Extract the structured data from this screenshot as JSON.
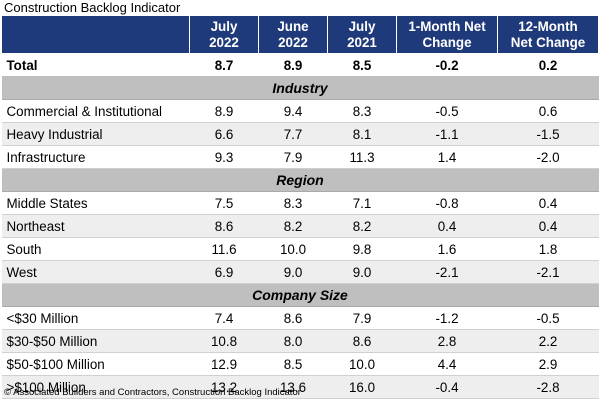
{
  "chart_data": {
    "type": "table",
    "title": "Construction Backlog Indicator",
    "columns": [
      {
        "line1": "",
        "line2": ""
      },
      {
        "line1": "July",
        "line2": "2022"
      },
      {
        "line1": "June",
        "line2": "2022"
      },
      {
        "line1": "July",
        "line2": "2021"
      },
      {
        "line1": "1-Month Net",
        "line2": "Change"
      },
      {
        "line1": "12-Month",
        "line2": "Net Change"
      }
    ],
    "total": {
      "label": "Total",
      "values": [
        "8.7",
        "8.9",
        "8.5",
        "-0.2",
        "0.2"
      ]
    },
    "sections": [
      {
        "name": "Industry",
        "rows": [
          {
            "label": "Commercial & Institutional",
            "values": [
              "8.9",
              "9.4",
              "8.3",
              "-0.5",
              "0.6"
            ]
          },
          {
            "label": "Heavy Industrial",
            "values": [
              "6.6",
              "7.7",
              "8.1",
              "-1.1",
              "-1.5"
            ]
          },
          {
            "label": "Infrastructure",
            "values": [
              "9.3",
              "7.9",
              "11.3",
              "1.4",
              "-2.0"
            ]
          }
        ]
      },
      {
        "name": "Region",
        "rows": [
          {
            "label": "Middle States",
            "values": [
              "7.5",
              "8.3",
              "7.1",
              "-0.8",
              "0.4"
            ]
          },
          {
            "label": "Northeast",
            "values": [
              "8.6",
              "8.2",
              "8.2",
              "0.4",
              "0.4"
            ]
          },
          {
            "label": "South",
            "values": [
              "11.6",
              "10.0",
              "9.8",
              "1.6",
              "1.8"
            ]
          },
          {
            "label": "West",
            "values": [
              "6.9",
              "9.0",
              "9.0",
              "-2.1",
              "-2.1"
            ]
          }
        ]
      },
      {
        "name": "Company Size",
        "rows": [
          {
            "label": "<$30 Million",
            "values": [
              "7.4",
              "8.6",
              "7.9",
              "-1.2",
              "-0.5"
            ]
          },
          {
            "label": "$30-$50 Million",
            "values": [
              "10.8",
              "8.0",
              "8.6",
              "2.8",
              "2.2"
            ]
          },
          {
            "label": "$50-$100 Million",
            "values": [
              "12.9",
              "8.5",
              "10.0",
              "4.4",
              "2.9"
            ]
          },
          {
            "label": ">$100 Million",
            "values": [
              "13.2",
              "13.6",
              "16.0",
              "-0.4",
              "-2.8"
            ]
          }
        ]
      }
    ],
    "source": "© Associated Builders and Contractors, Construction Backlog Indicator"
  },
  "colors": {
    "header_bg": "#1f3a7a",
    "section_bg": "#bfbfbf",
    "shaded_row_bg": "#eeeeee"
  }
}
